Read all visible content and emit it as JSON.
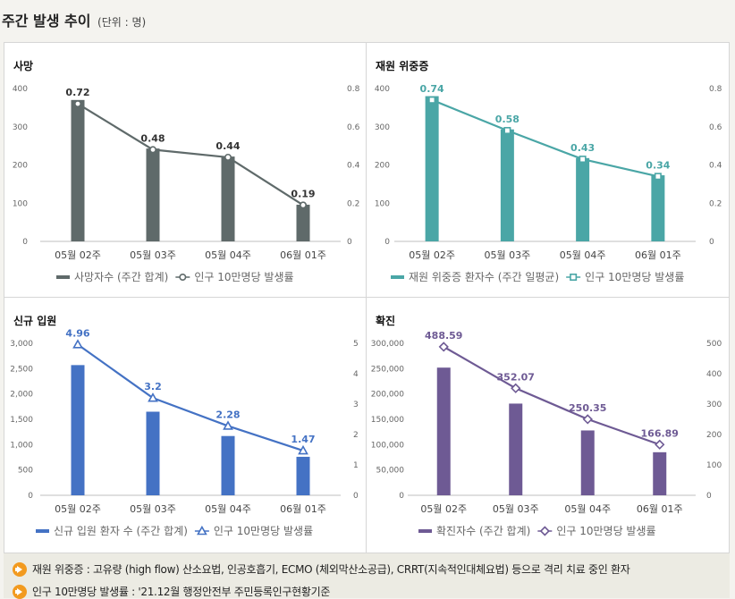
{
  "header": {
    "title": "주간 발생 추이",
    "unit": "(단위 : 명)"
  },
  "colors": {
    "deaths": "#5f6a6a",
    "severe": "#4aa6a6",
    "admission": "#4472c4",
    "confirmed": "#6e5a94"
  },
  "chart_data": [
    {
      "id": "deaths",
      "type": "bar+line",
      "title": "사망",
      "categories": [
        "05월 02주",
        "05월 03주",
        "05월 04주",
        "06월 01주"
      ],
      "bar_series": {
        "name": "사망자수 (주간 합계)",
        "values": [
          370,
          243,
          222,
          96
        ]
      },
      "line_series": {
        "name": "인구 10만명당 발생률",
        "values": [
          0.72,
          0.48,
          0.44,
          0.19
        ],
        "labels": [
          "0.72",
          "0.48",
          "0.44",
          "0.19"
        ],
        "marker": "circle"
      },
      "left_axis": {
        "min": 0,
        "max": 400,
        "ticks": [
          0,
          100,
          200,
          300,
          400
        ],
        "tick_labels": [
          "0",
          "100",
          "200",
          "300",
          "400"
        ]
      },
      "right_axis": {
        "min": 0,
        "max": 0.8,
        "ticks": [
          0,
          0.2,
          0.4,
          0.6,
          0.8
        ],
        "tick_labels": [
          "0",
          "0.2",
          "0.4",
          "0.6",
          "0.8"
        ]
      },
      "legend_position": "bottom"
    },
    {
      "id": "severe",
      "type": "bar+line",
      "title": "재원 위중증",
      "categories": [
        "05월 02주",
        "05월 03주",
        "05월 04주",
        "06월 01주"
      ],
      "bar_series": {
        "name": "재원 위중증 환자수 (주간 일평균)",
        "values": [
          380,
          293,
          218,
          173
        ]
      },
      "line_series": {
        "name": "인구 10만명당 발생률",
        "values": [
          0.74,
          0.58,
          0.43,
          0.34
        ],
        "labels": [
          "0.74",
          "0.58",
          "0.43",
          "0.34"
        ],
        "marker": "square"
      },
      "left_axis": {
        "min": 0,
        "max": 400,
        "ticks": [
          0,
          100,
          200,
          300,
          400
        ],
        "tick_labels": [
          "0",
          "100",
          "200",
          "300",
          "400"
        ]
      },
      "right_axis": {
        "min": 0,
        "max": 0.8,
        "ticks": [
          0,
          0.2,
          0.4,
          0.6,
          0.8
        ],
        "tick_labels": [
          "0",
          "0.2",
          "0.4",
          "0.6",
          "0.8"
        ]
      },
      "legend_position": "bottom"
    },
    {
      "id": "admission",
      "type": "bar+line",
      "title": "신규 입원",
      "categories": [
        "05월 02주",
        "05월 03주",
        "05월 04주",
        "06월 01주"
      ],
      "bar_series": {
        "name": "신규 입원 환자 수 (주간 합계)",
        "values": [
          2570,
          1650,
          1170,
          760
        ]
      },
      "line_series": {
        "name": "인구 10만명당 발생률",
        "values": [
          4.96,
          3.2,
          2.28,
          1.47
        ],
        "labels": [
          "4.96",
          "3.2",
          "2.28",
          "1.47"
        ],
        "marker": "triangle"
      },
      "left_axis": {
        "min": 0,
        "max": 3000,
        "ticks": [
          0,
          500,
          1000,
          1500,
          2000,
          2500,
          3000
        ],
        "tick_labels": [
          "0",
          "500",
          "1,000",
          "1,500",
          "2,000",
          "2,500",
          "3,000"
        ]
      },
      "right_axis": {
        "min": 0,
        "max": 5,
        "ticks": [
          0,
          1,
          2,
          3,
          4,
          5
        ],
        "tick_labels": [
          "0",
          "1",
          "2",
          "3",
          "4",
          "5"
        ]
      },
      "legend_position": "bottom"
    },
    {
      "id": "confirmed",
      "type": "bar+line",
      "title": "확진",
      "categories": [
        "05월 02주",
        "05월 03주",
        "05월 04주",
        "06월 01주"
      ],
      "bar_series": {
        "name": "확진자수 (주간 합계)",
        "values": [
          252000,
          181000,
          128000,
          85000
        ]
      },
      "line_series": {
        "name": "인구 10만명당 발생률",
        "values": [
          488.59,
          352.07,
          250.35,
          166.89
        ],
        "labels": [
          "488.59",
          "352.07",
          "250.35",
          "166.89"
        ],
        "marker": "diamond"
      },
      "left_axis": {
        "min": 0,
        "max": 300000,
        "ticks": [
          0,
          50000,
          100000,
          150000,
          200000,
          250000,
          300000
        ],
        "tick_labels": [
          "0",
          "50,000",
          "100,000",
          "150,000",
          "200,000",
          "250,000",
          "300,000"
        ]
      },
      "right_axis": {
        "min": 0,
        "max": 500,
        "ticks": [
          0,
          100,
          200,
          300,
          400,
          500
        ],
        "tick_labels": [
          "0",
          "100",
          "200",
          "300",
          "400",
          "500"
        ]
      },
      "legend_position": "bottom"
    }
  ],
  "notes": [
    "재원 위중증 : 고유량 (high flow) 산소요법, 인공호흡기, ECMO (체외막산소공급), CRRT(지속적인대체요법) 등으로 격리 치료 중인 환자",
    "인구 10만명당 발생률 : '21.12월 행정안전부 주민등록인구현황기준"
  ]
}
